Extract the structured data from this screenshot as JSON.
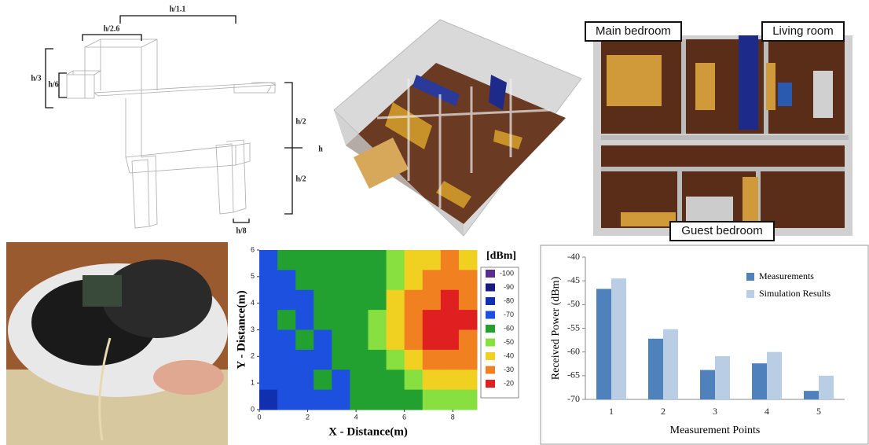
{
  "dog_model": {
    "dimensions": [
      "h/1.1",
      "h/2.6",
      "h/3",
      "h/6",
      "h/2",
      "h/2",
      "h",
      "h/8"
    ]
  },
  "floor_plan": {
    "rooms": [
      "Main bedroom",
      "Living room",
      "Guest bedroom"
    ]
  },
  "chart_data": [
    {
      "type": "heatmap",
      "x_label": "X - Distance(m)",
      "y_label": "Y - Distance(m)",
      "legend_title": "[dBm]",
      "xlim": [
        0,
        9
      ],
      "ylim": [
        0,
        6
      ],
      "xticks": [
        0,
        2,
        4,
        6,
        8
      ],
      "yticks": [
        0,
        1,
        2,
        3,
        4,
        5,
        6
      ],
      "levels": [
        -100,
        -90,
        -80,
        -70,
        -60,
        -50,
        -40,
        -30,
        -20
      ],
      "colors": [
        "#5b2c8f",
        "#1a1a80",
        "#1030b0",
        "#1e50e0",
        "#22a030",
        "#88e040",
        "#f0d020",
        "#f08020",
        "#e02020"
      ],
      "z": [
        [
          -70,
          -60,
          -60,
          -60,
          -60,
          -60,
          -60,
          -50,
          -40,
          -40,
          -30,
          -40
        ],
        [
          -70,
          -70,
          -60,
          -60,
          -60,
          -60,
          -60,
          -50,
          -40,
          -30,
          -30,
          -30
        ],
        [
          -70,
          -70,
          -70,
          -60,
          -60,
          -60,
          -60,
          -40,
          -30,
          -30,
          -20,
          -30
        ],
        [
          -70,
          -60,
          -70,
          -60,
          -60,
          -60,
          -50,
          -40,
          -30,
          -20,
          -20,
          -20
        ],
        [
          -70,
          -70,
          -60,
          -70,
          -60,
          -60,
          -50,
          -40,
          -30,
          -20,
          -20,
          -30
        ],
        [
          -70,
          -70,
          -70,
          -70,
          -60,
          -60,
          -60,
          -50,
          -40,
          -30,
          -30,
          -30
        ],
        [
          -70,
          -70,
          -70,
          -60,
          -70,
          -60,
          -60,
          -60,
          -50,
          -40,
          -40,
          -40
        ],
        [
          -80,
          -70,
          -70,
          -70,
          -70,
          -60,
          -60,
          -60,
          -60,
          -50,
          -50,
          -50
        ]
      ]
    },
    {
      "type": "bar",
      "x_label": "Measurement Points",
      "y_label": "Received Power (dBm)",
      "categories": [
        "1",
        "2",
        "3",
        "4",
        "5"
      ],
      "series": [
        {
          "name": "Measurements",
          "color": "#4f81bd",
          "values": [
            -46.7,
            -57.2,
            -63.8,
            -62.4,
            -68.2
          ]
        },
        {
          "name": "Simulation Results",
          "color": "#b9cde5",
          "values": [
            -44.5,
            -55.2,
            -60.9,
            -60.0,
            -65.0
          ]
        }
      ],
      "ylim": [
        -70,
        -40
      ],
      "yticks": [
        -70,
        -65,
        -60,
        -55,
        -50,
        -45,
        -40
      ]
    }
  ]
}
